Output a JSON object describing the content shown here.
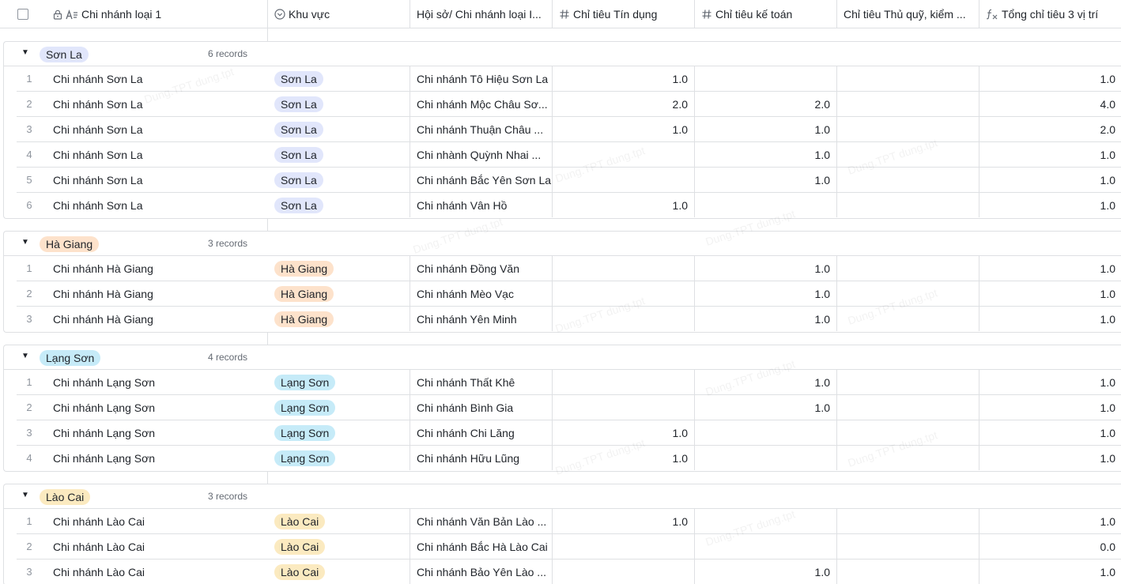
{
  "header": {
    "col_name": "Chi nhánh loại 1",
    "col_region": "Khu vực",
    "col_branch": "Hội sở/ Chi nhánh loại I...",
    "col_credit": "Chỉ tiêu Tín dụng",
    "col_accounting": "Chỉ tiêu kế toán",
    "col_cashier": "Chỉ tiêu Thủ quỹ, kiểm ...",
    "col_total": "Tổng chỉ tiêu 3 vị trí"
  },
  "icons": {
    "lock": "lock-icon",
    "text_type": "text-type-icon",
    "select_type": "single-select-icon",
    "number_type": "number-hash-icon",
    "formula_type": "formula-icon",
    "collapse": "triangle-down-icon"
  },
  "colors": {
    "son_la": "#e1e6fb",
    "ha_giang": "#fde2cb",
    "lang_son": "#c6ebf8",
    "lao_cai": "#fbeac0"
  },
  "watermark": "Dung.TPT dung.tpt",
  "groups": [
    {
      "label": "Sơn La",
      "count": "6 records",
      "rows": [
        {
          "num": "1",
          "name": "Chi nhánh Sơn La",
          "region": "Sơn La",
          "branch": "Chi nhánh Tô Hiệu Sơn La",
          "credit": "1.0",
          "accounting": "",
          "cashier": "",
          "total": "1.0"
        },
        {
          "num": "2",
          "name": "Chi nhánh Sơn La",
          "region": "Sơn La",
          "branch": "Chi nhánh Mộc Châu Sơ...",
          "credit": "2.0",
          "accounting": "2.0",
          "cashier": "",
          "total": "4.0"
        },
        {
          "num": "3",
          "name": "Chi nhánh Sơn La",
          "region": "Sơn La",
          "branch": "Chi nhánh Thuận Châu ...",
          "credit": "1.0",
          "accounting": "1.0",
          "cashier": "",
          "total": "2.0"
        },
        {
          "num": "4",
          "name": "Chi nhánh Sơn La",
          "region": "Sơn La",
          "branch": "Chi nhành Quỳnh Nhai ...",
          "credit": "",
          "accounting": "1.0",
          "cashier": "",
          "total": "1.0"
        },
        {
          "num": "5",
          "name": "Chi nhánh Sơn La",
          "region": "Sơn La",
          "branch": "Chi nhánh Bắc Yên Sơn La",
          "credit": "",
          "accounting": "1.0",
          "cashier": "",
          "total": "1.0"
        },
        {
          "num": "6",
          "name": "Chi nhánh Sơn La",
          "region": "Sơn La",
          "branch": "Chi nhánh Vân Hồ",
          "credit": "1.0",
          "accounting": "",
          "cashier": "",
          "total": "1.0"
        }
      ]
    },
    {
      "label": "Hà Giang",
      "count": "3 records",
      "rows": [
        {
          "num": "1",
          "name": "Chi nhánh Hà Giang",
          "region": "Hà Giang",
          "branch": "Chi nhánh Đồng Văn",
          "credit": "",
          "accounting": "1.0",
          "cashier": "",
          "total": "1.0"
        },
        {
          "num": "2",
          "name": "Chi nhánh Hà Giang",
          "region": "Hà Giang",
          "branch": "Chi nhánh Mèo Vạc",
          "credit": "",
          "accounting": "1.0",
          "cashier": "",
          "total": "1.0"
        },
        {
          "num": "3",
          "name": "Chi nhánh Hà Giang",
          "region": "Hà Giang",
          "branch": "Chi nhánh Yên Minh",
          "credit": "",
          "accounting": "1.0",
          "cashier": "",
          "total": "1.0"
        }
      ]
    },
    {
      "label": "Lạng Sơn",
      "count": "4 records",
      "rows": [
        {
          "num": "1",
          "name": "Chi nhánh Lạng Sơn",
          "region": "Lạng Sơn",
          "branch": "Chi nhánh Thất Khê",
          "credit": "",
          "accounting": "1.0",
          "cashier": "",
          "total": "1.0"
        },
        {
          "num": "2",
          "name": "Chi nhánh Lạng Sơn",
          "region": "Lạng Sơn",
          "branch": "Chi nhánh Bình Gia",
          "credit": "",
          "accounting": "1.0",
          "cashier": "",
          "total": "1.0"
        },
        {
          "num": "3",
          "name": "Chi nhánh Lạng Sơn",
          "region": "Lạng Sơn",
          "branch": "Chi nhánh Chi Lăng",
          "credit": "1.0",
          "accounting": "",
          "cashier": "",
          "total": "1.0"
        },
        {
          "num": "4",
          "name": "Chi nhánh Lạng Sơn",
          "region": "Lạng Sơn",
          "branch": "Chi nhánh Hữu Lũng",
          "credit": "1.0",
          "accounting": "",
          "cashier": "",
          "total": "1.0"
        }
      ]
    },
    {
      "label": "Lào Cai",
      "count": "3 records",
      "rows": [
        {
          "num": "1",
          "name": "Chi nhánh Lào Cai",
          "region": "Lào Cai",
          "branch": "Chi nhánh Văn Bản Lào ...",
          "credit": "1.0",
          "accounting": "",
          "cashier": "",
          "total": "1.0"
        },
        {
          "num": "2",
          "name": "Chi nhánh Lào Cai",
          "region": "Lào Cai",
          "branch": "Chi nhánh Bắc Hà Lào Cai",
          "credit": "",
          "accounting": "",
          "cashier": "",
          "total": "0.0"
        },
        {
          "num": "3",
          "name": "Chi nhánh Lào Cai",
          "region": "Lào Cai",
          "branch": "Chi nhánh Bảo Yên Lào ...",
          "credit": "",
          "accounting": "1.0",
          "cashier": "",
          "total": "1.0"
        }
      ]
    }
  ]
}
